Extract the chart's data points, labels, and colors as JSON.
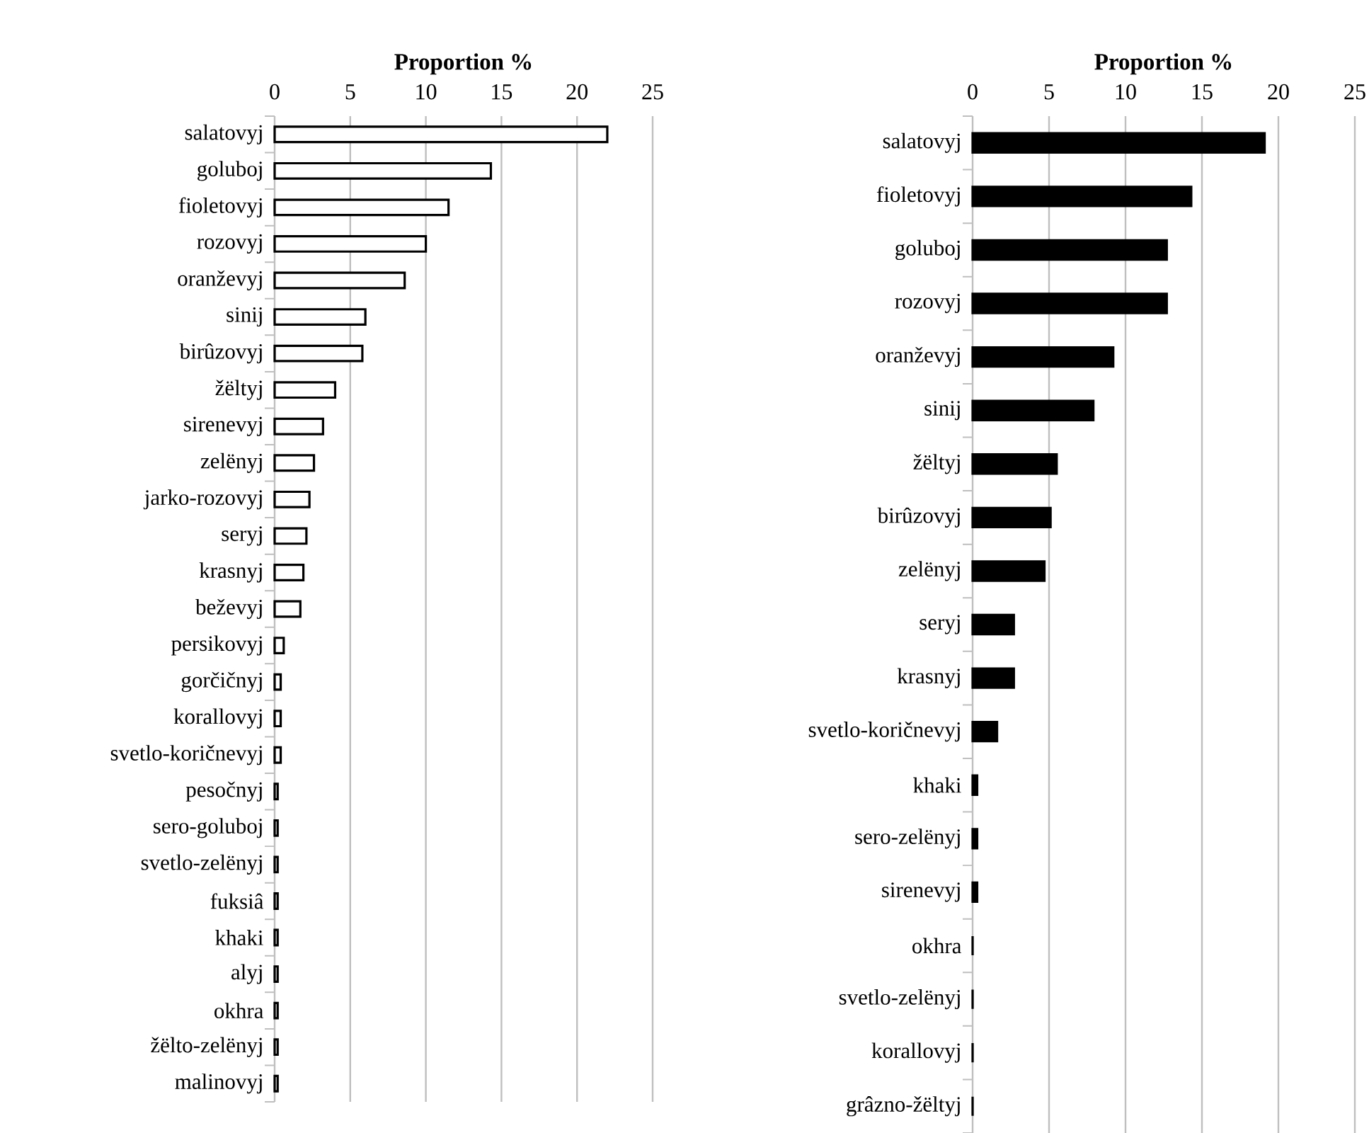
{
  "chart_data": [
    {
      "type": "bar",
      "orientation": "horizontal",
      "xlabel": "Proportion %",
      "categories": [
        "salatovyj",
        "goluboj",
        "fioletovyj",
        "rozovyj",
        "oranževyj",
        "sinij",
        "birûzovyj",
        "žëltyj",
        "sirenevyj",
        "zelënyj",
        "jarko-rozovyj",
        "seryj",
        "krasnyj",
        "beževyj",
        "persikovyj",
        "gorčičnyj",
        "korallovyj",
        "svetlo-koričnevyj",
        "pesočnyj",
        "sero-goluboj",
        "svetlo-zelënyj",
        "fuksiâ",
        "khaki",
        "alyj",
        "okhra",
        "žëlto-zelënyj",
        "malinovyj"
      ],
      "values": [
        22.0,
        14.3,
        11.5,
        10.0,
        8.6,
        6.0,
        5.8,
        4.0,
        3.2,
        2.6,
        2.3,
        2.1,
        1.9,
        1.7,
        0.6,
        0.4,
        0.4,
        0.4,
        0.2,
        0.2,
        0.2,
        0.2,
        0.2,
        0.2,
        0.2,
        0.2,
        0.2
      ],
      "color": "#ffffff",
      "xlim": [
        0,
        25
      ],
      "xticks": [
        0,
        5,
        10,
        15,
        20,
        25
      ],
      "grid": "x"
    },
    {
      "type": "bar",
      "orientation": "horizontal",
      "xlabel": "Proportion %",
      "categories": [
        "salatovyj",
        "fioletovyj",
        "goluboj",
        "rozovyj",
        "oranževyj",
        "sinij",
        "žëltyj",
        "birûzovyj",
        "zelënyj",
        "seryj",
        "krasnyj",
        "svetlo-koričnevyj",
        "khaki",
        "sero-zelënyj",
        "sirenevyj",
        "okhra",
        "svetlo-zelënyj",
        "korallovyj",
        "grâzno-žëltyj"
      ],
      "values": [
        19.1,
        14.3,
        12.7,
        12.7,
        9.2,
        7.9,
        5.5,
        5.1,
        4.7,
        2.7,
        2.7,
        1.6,
        0.3,
        0.3,
        0.3,
        0,
        0,
        0,
        0
      ],
      "color": "#000000",
      "xlim": [
        0,
        25
      ],
      "xticks": [
        0,
        5,
        10,
        15,
        20,
        25
      ],
      "grid": "x"
    }
  ]
}
